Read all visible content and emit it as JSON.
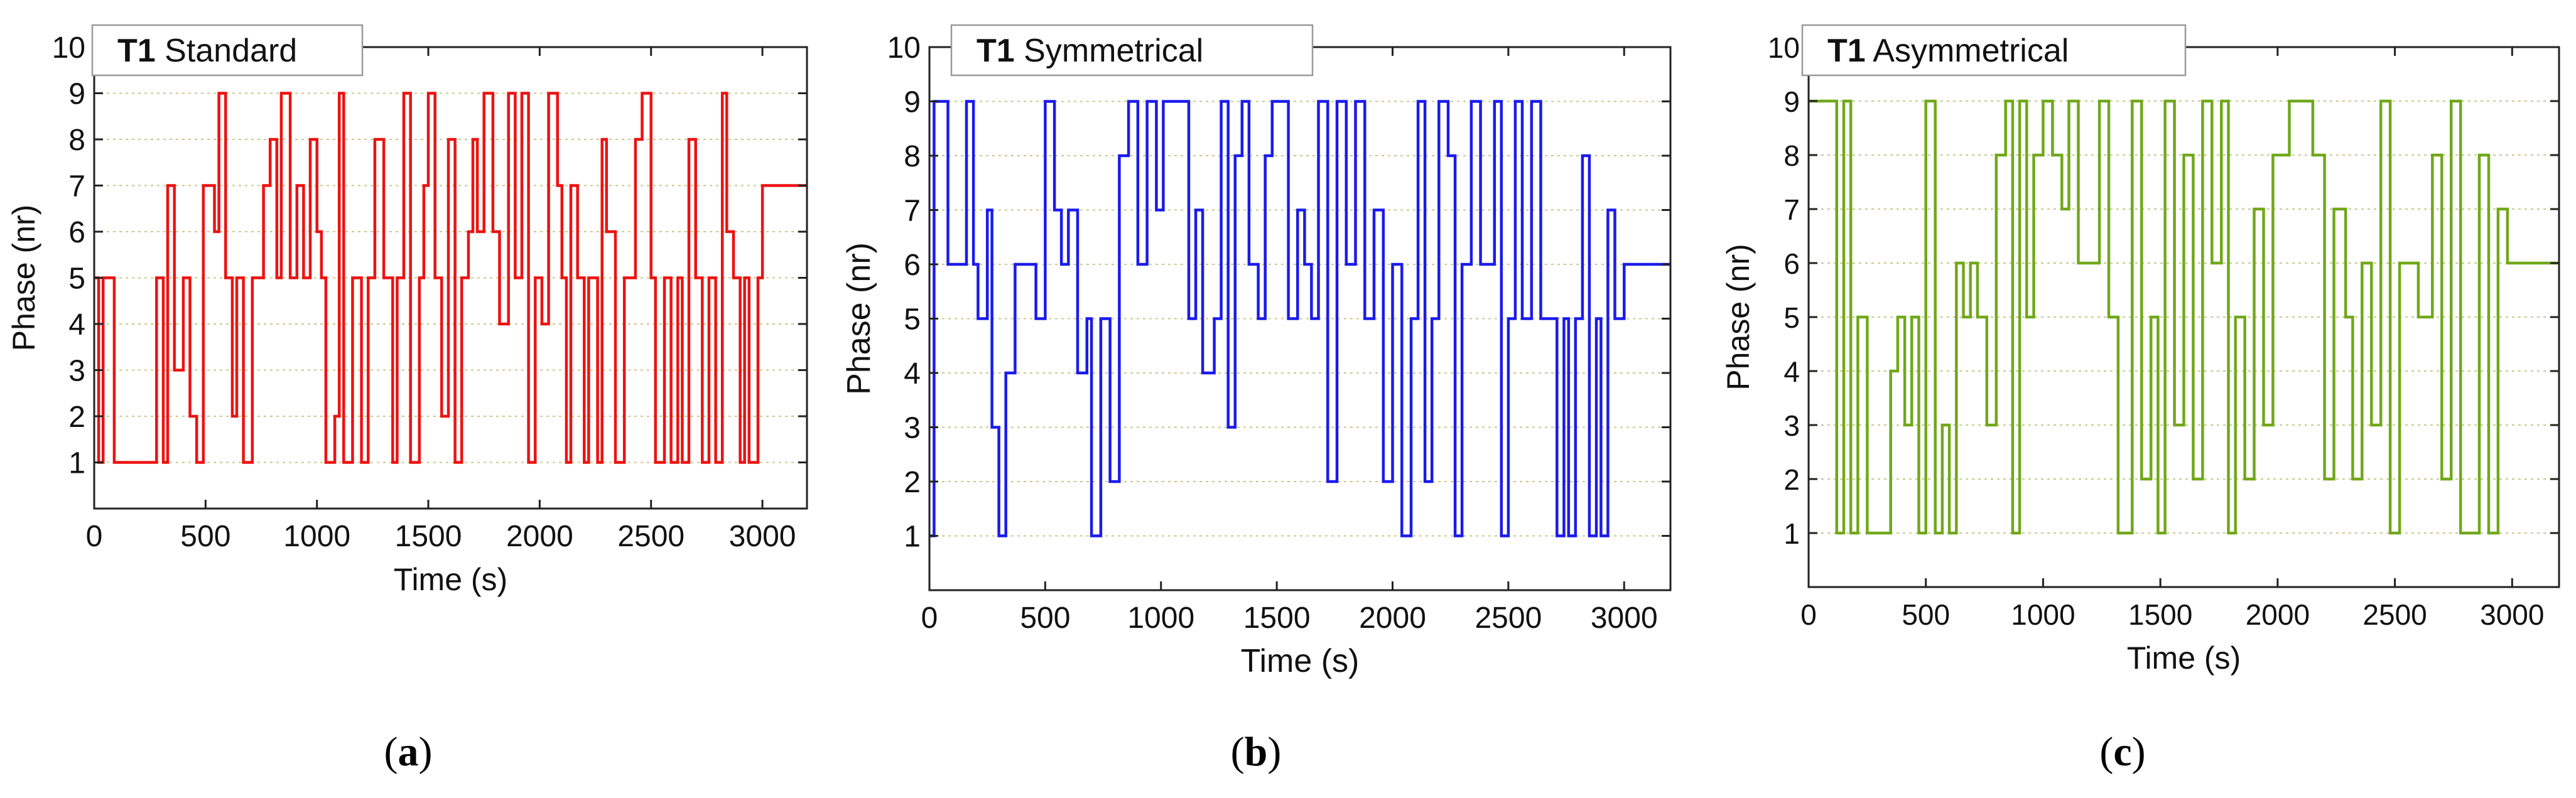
{
  "chart_data": [
    {
      "type": "line",
      "title_bold": "T1",
      "title": "Standard",
      "xlabel": "Time (s)",
      "ylabel": "Phase (nr)",
      "xlim": [
        0,
        3200
      ],
      "ylim": [
        0,
        10
      ],
      "xticks": [
        0,
        500,
        1000,
        1500,
        2000,
        2500,
        3000
      ],
      "yticks": [
        1,
        2,
        3,
        4,
        5,
        6,
        7,
        8,
        9,
        10
      ],
      "grid": "horizontal dotted",
      "color": "#ee1111",
      "panel_label": "a",
      "series": [
        {
          "x": [
            0,
            20,
            40,
            90,
            280,
            310,
            330,
            360,
            400,
            430,
            460,
            490,
            540,
            560,
            590,
            620,
            640,
            670,
            710,
            760,
            790,
            820,
            840,
            880,
            910,
            940,
            970,
            1000,
            1020,
            1040,
            1080,
            1100,
            1120,
            1160,
            1200,
            1230,
            1260,
            1300,
            1340,
            1360,
            1390,
            1420,
            1460,
            1480,
            1500,
            1530,
            1560,
            1590,
            1620,
            1650,
            1680,
            1700,
            1720,
            1750,
            1790,
            1820,
            1860,
            1890,
            1920,
            1950,
            1980,
            2010,
            2040,
            2080,
            2100,
            2120,
            2140,
            2170,
            2200,
            2220,
            2260,
            2280,
            2300,
            2340,
            2380,
            2400,
            2430,
            2460,
            2500,
            2520,
            2560,
            2590,
            2620,
            2640,
            2670,
            2700,
            2730,
            2760,
            2790,
            2820,
            2840,
            2870,
            2900,
            2920,
            2940,
            2980,
            3000,
            3030,
            3060,
            3090,
            3120,
            3160,
            3200
          ],
          "y": [
            5,
            1,
            5,
            1,
            5,
            1,
            7,
            3,
            5,
            2,
            1,
            7,
            6,
            9,
            5,
            2,
            5,
            1,
            5,
            7,
            8,
            5,
            9,
            5,
            7,
            5,
            8,
            6,
            5,
            1,
            2,
            9,
            1,
            5,
            1,
            5,
            8,
            5,
            1,
            5,
            9,
            1,
            5,
            7,
            9,
            5,
            2,
            8,
            1,
            5,
            6,
            8,
            6,
            9,
            6,
            4,
            9,
            5,
            9,
            1,
            5,
            4,
            9,
            7,
            5,
            1,
            7,
            5,
            1,
            5,
            1,
            8,
            6,
            1,
            5,
            5,
            8,
            9,
            5,
            1,
            5,
            1,
            5,
            1,
            8,
            5,
            1,
            5,
            1,
            9,
            6,
            5,
            1,
            5,
            1,
            5,
            7,
            7,
            7,
            7,
            7,
            7,
            7
          ]
        }
      ]
    },
    {
      "type": "line",
      "title_bold": "T1",
      "title": "Symmetrical",
      "xlabel": "Time (s)",
      "ylabel": "Phase (nr)",
      "xlim": [
        0,
        3200
      ],
      "ylim": [
        0,
        10
      ],
      "xticks": [
        0,
        500,
        1000,
        1500,
        2000,
        2500,
        3000
      ],
      "yticks": [
        1,
        2,
        3,
        4,
        5,
        6,
        7,
        8,
        9,
        10
      ],
      "grid": "horizontal dotted",
      "color": "#1a1aee",
      "panel_label": "b",
      "series": [
        {
          "x": [
            0,
            20,
            80,
            160,
            190,
            210,
            250,
            270,
            300,
            330,
            370,
            410,
            460,
            500,
            540,
            570,
            600,
            640,
            680,
            700,
            740,
            780,
            820,
            860,
            900,
            940,
            980,
            1010,
            1040,
            1090,
            1120,
            1150,
            1180,
            1230,
            1260,
            1290,
            1320,
            1350,
            1380,
            1420,
            1450,
            1480,
            1520,
            1550,
            1590,
            1620,
            1650,
            1680,
            1720,
            1760,
            1800,
            1840,
            1880,
            1920,
            1960,
            2000,
            2040,
            2080,
            2110,
            2140,
            2170,
            2200,
            2240,
            2270,
            2300,
            2340,
            2380,
            2410,
            2440,
            2470,
            2500,
            2530,
            2560,
            2600,
            2640,
            2680,
            2710,
            2740,
            2760,
            2790,
            2820,
            2850,
            2880,
            2900,
            2930,
            2960,
            3000,
            3040,
            3080,
            3120,
            3160,
            3200
          ],
          "y": [
            1,
            9,
            6,
            9,
            6,
            5,
            7,
            3,
            1,
            4,
            6,
            6,
            5,
            9,
            7,
            6,
            7,
            4,
            5,
            1,
            5,
            2,
            8,
            9,
            6,
            9,
            7,
            9,
            9,
            9,
            5,
            7,
            4,
            5,
            9,
            3,
            8,
            9,
            6,
            5,
            8,
            9,
            9,
            5,
            7,
            6,
            5,
            9,
            2,
            9,
            6,
            9,
            5,
            7,
            2,
            6,
            1,
            5,
            9,
            2,
            5,
            9,
            8,
            1,
            6,
            9,
            6,
            6,
            9,
            1,
            5,
            9,
            5,
            9,
            5,
            5,
            1,
            5,
            1,
            5,
            8,
            1,
            5,
            1,
            7,
            5,
            6,
            6,
            6,
            6,
            6,
            6
          ]
        }
      ]
    },
    {
      "type": "line",
      "title_bold": "T1",
      "title": "Asymmetrical",
      "xlabel": "Time (s)",
      "ylabel": "Phase (nr)",
      "xlim": [
        0,
        3200
      ],
      "ylim": [
        0,
        10
      ],
      "xticks": [
        0,
        500,
        1000,
        1500,
        2000,
        2500,
        3000
      ],
      "yticks": [
        1,
        2,
        3,
        4,
        5,
        6,
        7,
        8,
        9,
        10
      ],
      "grid": "horizontal dotted",
      "color": "#70a81a",
      "panel_label": "c",
      "series": [
        {
          "x": [
            0,
            120,
            150,
            180,
            210,
            250,
            300,
            350,
            380,
            410,
            440,
            470,
            500,
            540,
            570,
            600,
            630,
            660,
            690,
            720,
            760,
            800,
            840,
            870,
            900,
            930,
            960,
            1000,
            1040,
            1080,
            1110,
            1150,
            1190,
            1240,
            1280,
            1320,
            1380,
            1420,
            1460,
            1490,
            1520,
            1560,
            1600,
            1640,
            1680,
            1720,
            1760,
            1790,
            1820,
            1860,
            1900,
            1940,
            1980,
            2010,
            2050,
            2100,
            2150,
            2200,
            2240,
            2290,
            2320,
            2360,
            2400,
            2440,
            2480,
            2520,
            2560,
            2600,
            2660,
            2700,
            2740,
            2780,
            2820,
            2860,
            2900,
            2940,
            2980,
            3020,
            3060,
            3090,
            3110,
            3140,
            3200
          ],
          "y": [
            9,
            1,
            9,
            1,
            5,
            1,
            1,
            4,
            5,
            3,
            5,
            1,
            9,
            1,
            3,
            1,
            6,
            5,
            6,
            5,
            3,
            8,
            9,
            1,
            9,
            5,
            8,
            9,
            8,
            7,
            9,
            6,
            6,
            9,
            5,
            1,
            9,
            2,
            5,
            1,
            9,
            3,
            8,
            2,
            9,
            6,
            9,
            1,
            5,
            2,
            7,
            3,
            8,
            8,
            9,
            9,
            8,
            2,
            7,
            5,
            2,
            6,
            3,
            9,
            1,
            6,
            6,
            5,
            8,
            2,
            9,
            1,
            1,
            8,
            1,
            7,
            6,
            6,
            6,
            6,
            6,
            6,
            6
          ]
        }
      ]
    }
  ]
}
